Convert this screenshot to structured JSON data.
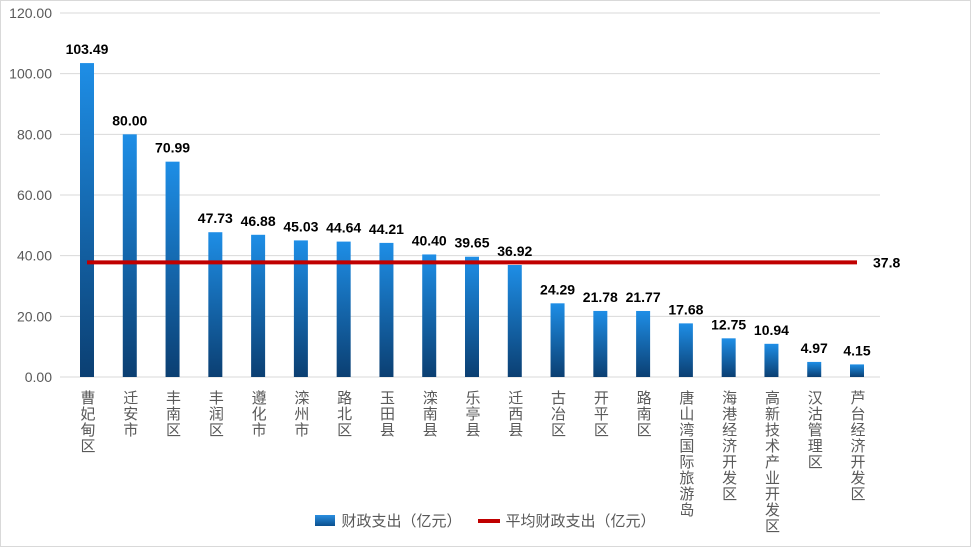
{
  "chart_data": {
    "type": "bar",
    "title": "",
    "xlabel": "",
    "ylabel": "",
    "ylim": [
      0,
      120
    ],
    "yticks": [
      "0.00",
      "20.00",
      "40.00",
      "60.00",
      "80.00",
      "100.00",
      "120.00"
    ],
    "grid": true,
    "categories": [
      "曹妃甸区",
      "迁安市",
      "丰南区",
      "丰润区",
      "遵化市",
      "滦州市",
      "路北区",
      "玉田县",
      "滦南县",
      "乐亭县",
      "迁西县",
      "古冶区",
      "开平区",
      "路南区",
      "唐山湾国际旅游岛",
      "海港经济开发区",
      "高新技术产业开发区",
      "汉沽管理区",
      "芦台经济开发区"
    ],
    "series": [
      {
        "name": "财政支出（亿元）",
        "type": "bar",
        "color": "#1a7fd4",
        "values": [
          103.49,
          80.0,
          70.99,
          47.73,
          46.88,
          45.03,
          44.64,
          44.21,
          40.4,
          39.65,
          36.92,
          24.29,
          21.78,
          21.77,
          17.68,
          12.75,
          10.94,
          4.97,
          4.15
        ],
        "labels": [
          "103.49",
          "80.00",
          "70.99",
          "47.73",
          "46.88",
          "45.03",
          "44.64",
          "44.21",
          "40.40",
          "39.65",
          "36.92",
          "24.29",
          "21.78",
          "21.77",
          "17.68",
          "12.75",
          "10.94",
          "4.97",
          "4.15"
        ]
      },
      {
        "name": "平均财政支出（亿元）",
        "type": "line",
        "color": "#c00000",
        "value": 37.8,
        "label": "37.8"
      }
    ],
    "legend_position": "bottom"
  }
}
